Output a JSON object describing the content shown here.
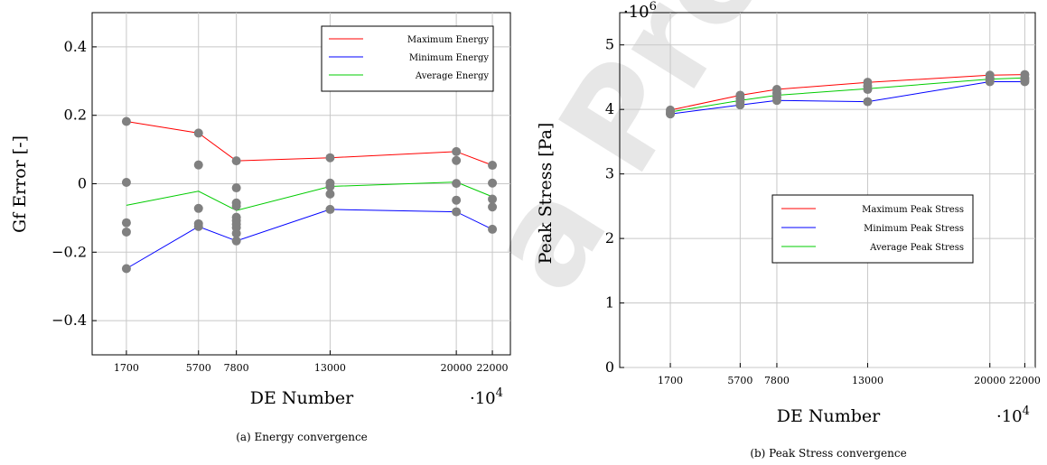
{
  "watermark": "a Pre-p",
  "chart_data": [
    {
      "type": "line",
      "caption": "(a) Energy convergence",
      "xlabel": "DE Number",
      "ylabel": "Gf Error [-]",
      "x_multiplier": "·10",
      "x_multiplier_exp": "4",
      "y_multiplier": "",
      "y_multiplier_exp": "",
      "x": [
        1700,
        5700,
        7800,
        13000,
        20000,
        22000
      ],
      "x_tick_labels": [
        "1700",
        "5700",
        "7800",
        "13000",
        "20000",
        "22000"
      ],
      "yticks": [
        -0.4,
        -0.2,
        0,
        0.2,
        0.4
      ],
      "ytick_labels": [
        "−0.4",
        "−0.2",
        "0",
        "0.2",
        "0.4"
      ],
      "ylim": [
        -0.5,
        0.5
      ],
      "grid": true,
      "legend_position": "top-right",
      "series": [
        {
          "name": "Maximum Energy",
          "color": "#ff0000",
          "values": [
            0.182,
            0.148,
            0.067,
            0.076,
            0.094,
            0.054
          ]
        },
        {
          "name": "Minimum Energy",
          "color": "#0000ff",
          "values": [
            -0.248,
            -0.125,
            -0.167,
            -0.075,
            -0.082,
            -0.133
          ]
        },
        {
          "name": "Average Energy",
          "color": "#00cc00",
          "values": [
            -0.063,
            -0.022,
            -0.078,
            -0.008,
            0.005,
            -0.038
          ]
        }
      ],
      "samples": [
        {
          "x": 1700,
          "y": [
            0.182,
            0.004,
            -0.114,
            -0.141,
            -0.248
          ]
        },
        {
          "x": 5700,
          "y": [
            0.148,
            0.055,
            -0.072,
            -0.117,
            -0.125
          ]
        },
        {
          "x": 7800,
          "y": [
            0.067,
            -0.012,
            -0.056,
            -0.065,
            -0.098,
            -0.108,
            -0.118,
            -0.128,
            -0.145,
            -0.167
          ]
        },
        {
          "x": 13000,
          "y": [
            0.076,
            0.002,
            -0.008,
            -0.03,
            -0.075
          ]
        },
        {
          "x": 20000,
          "y": [
            0.094,
            0.068,
            0.001,
            -0.048,
            -0.082
          ]
        },
        {
          "x": 22000,
          "y": [
            0.054,
            0.002,
            -0.045,
            -0.068,
            -0.133
          ]
        }
      ],
      "marker_color": "#808080"
    },
    {
      "type": "line",
      "caption": "(b) Peak Stress convergence",
      "xlabel": "DE Number",
      "ylabel": "Peak Stress [Pa]",
      "x_multiplier": "·10",
      "x_multiplier_exp": "4",
      "y_multiplier": "·10",
      "y_multiplier_exp": "6",
      "x": [
        1700,
        5700,
        7800,
        13000,
        20000,
        22000
      ],
      "x_tick_labels": [
        "1700",
        "5700",
        "7800",
        "13000",
        "20000",
        "22000"
      ],
      "yticks": [
        0,
        1,
        2,
        3,
        4,
        5
      ],
      "ytick_labels": [
        "0",
        "1",
        "2",
        "3",
        "4",
        "5"
      ],
      "ylim": [
        0,
        5.5
      ],
      "grid": true,
      "legend_position": "center-right",
      "series": [
        {
          "name": "Maximum Peak Stress",
          "color": "#ff0000",
          "values": [
            3.99,
            4.22,
            4.31,
            4.42,
            4.53,
            4.54
          ]
        },
        {
          "name": "Minimum Peak Stress",
          "color": "#0000ff",
          "values": [
            3.93,
            4.07,
            4.14,
            4.12,
            4.43,
            4.43
          ]
        },
        {
          "name": "Average Peak Stress",
          "color": "#00cc00",
          "values": [
            3.96,
            4.14,
            4.22,
            4.32,
            4.47,
            4.49
          ]
        }
      ],
      "samples": [
        {
          "x": 1700,
          "y": [
            3.99,
            3.96,
            3.94,
            3.93
          ]
        },
        {
          "x": 5700,
          "y": [
            4.22,
            4.17,
            4.12,
            4.07
          ]
        },
        {
          "x": 7800,
          "y": [
            4.31,
            4.25,
            4.19,
            4.14
          ]
        },
        {
          "x": 13000,
          "y": [
            4.42,
            4.36,
            4.31,
            4.12
          ]
        },
        {
          "x": 20000,
          "y": [
            4.53,
            4.49,
            4.45,
            4.43
          ]
        },
        {
          "x": 22000,
          "y": [
            4.54,
            4.49,
            4.46,
            4.43
          ]
        }
      ],
      "marker_color": "#808080"
    }
  ]
}
